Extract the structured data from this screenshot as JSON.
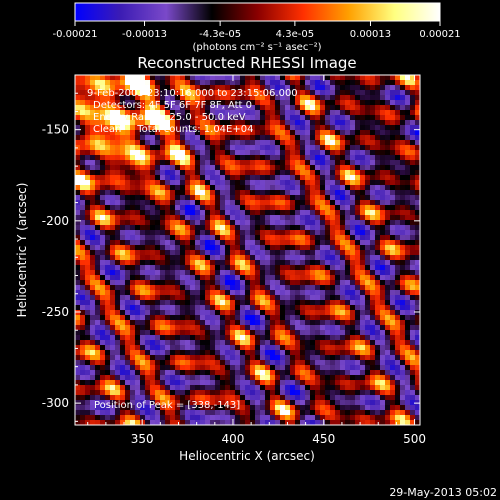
{
  "chart_data": {
    "type": "heatmap",
    "title": "Reconstructed RHESSI Image",
    "xlabel": "Heliocentric X (arcsec)",
    "ylabel": "Heliocentric Y (arcsec)",
    "xlim": [
      313,
      503
    ],
    "ylim": [
      -312,
      -120
    ],
    "x_ticks": [
      350,
      400,
      450,
      500
    ],
    "x_tick_labels": [
      "350",
      "400",
      "450",
      "500"
    ],
    "y_ticks": [
      -150,
      -200,
      -250,
      -300
    ],
    "y_tick_labels": [
      "-150",
      "-200",
      "-250",
      "-300"
    ],
    "colorbar": {
      "range": [
        -0.00021,
        0.00021
      ],
      "ticks": [
        -0.00021,
        -0.00013,
        -4.3e-05,
        4.3e-05,
        0.00013,
        0.00021
      ],
      "tick_labels": [
        "-0.00021",
        "-0.00013",
        "-4.3e-05",
        "4.3e-05",
        "0.00013",
        "0.00021"
      ],
      "unit_label": "(photons cm⁻² s⁻¹ asec⁻²)",
      "colors": [
        "#0000ff",
        "#3c1cb4",
        "#7a49c9",
        "#000000",
        "#8a0000",
        "#ff3000",
        "#ffa000",
        "#ffff80",
        "#ffffff"
      ]
    },
    "annotations": [
      "9-Feb-2003 23:10:16.000 to 23:15:06.000",
      "Detectors: 4F 5F 6F 7F 8F, Att 0",
      "Energy Range: 25.0 - 50.0 keV",
      "Clean     Total counts: 1.04E+04",
      "Position of Peak = [338,-143]"
    ],
    "peak": [
      338,
      -143
    ],
    "timestamp": "29-May-2013 05:02"
  }
}
